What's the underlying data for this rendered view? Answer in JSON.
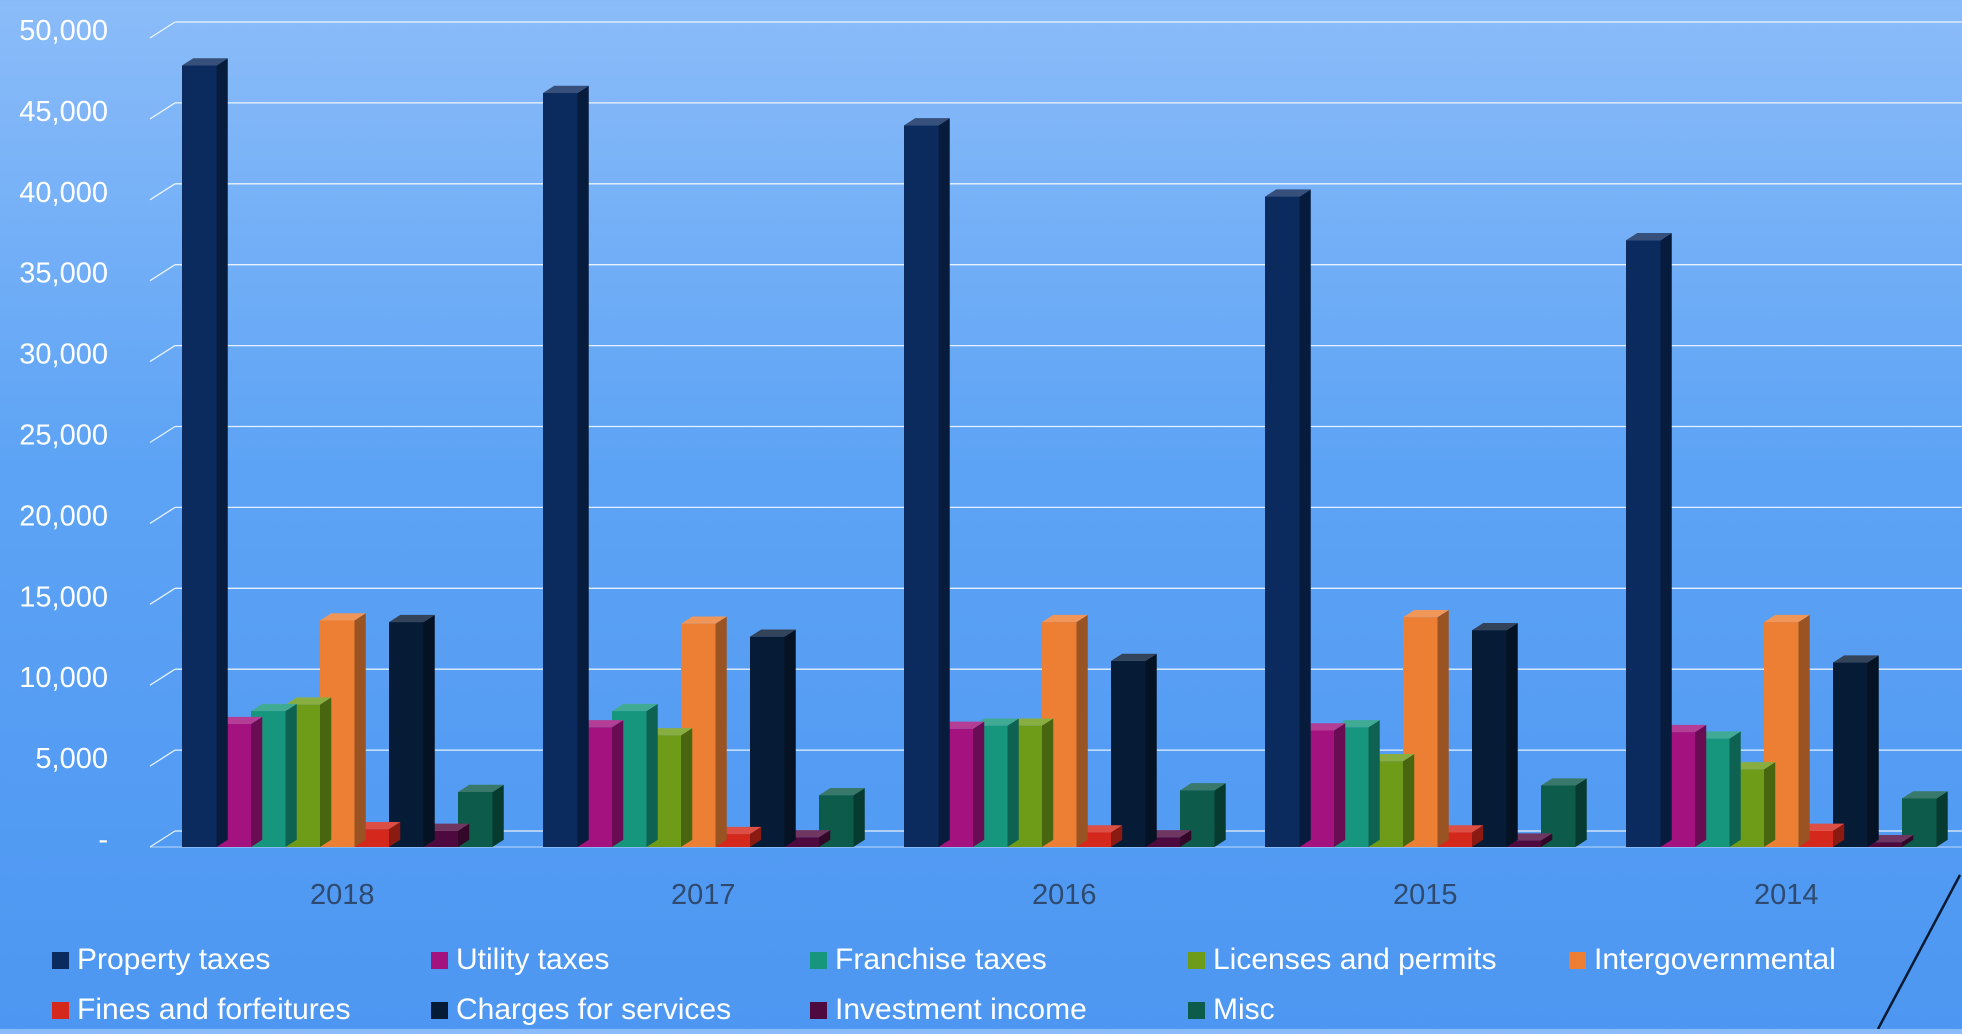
{
  "chart_data": {
    "type": "bar",
    "categories": [
      "2018",
      "2017",
      "2016",
      "2015",
      "2014"
    ],
    "ylim": [
      0,
      50000
    ],
    "yticks": [
      {
        "value": 0,
        "label": "-"
      },
      {
        "value": 5000,
        "label": "5,000"
      },
      {
        "value": 10000,
        "label": "10,000"
      },
      {
        "value": 15000,
        "label": "15,000"
      },
      {
        "value": 20000,
        "label": "20,000"
      },
      {
        "value": 25000,
        "label": "25,000"
      },
      {
        "value": 30000,
        "label": "30,000"
      },
      {
        "value": 35000,
        "label": "35,000"
      },
      {
        "value": 40000,
        "label": "40,000"
      },
      {
        "value": 45000,
        "label": "45,000"
      },
      {
        "value": 50000,
        "label": "50,000"
      }
    ],
    "grid": true,
    "legend_position": "bottom",
    "series": [
      {
        "name": "Property taxes",
        "color": "#0b2a5e",
        "values": [
          48300,
          46600,
          44600,
          40200,
          37500
        ]
      },
      {
        "name": "Utility taxes",
        "color": "#a3127f",
        "values": [
          7600,
          7400,
          7300,
          7200,
          7100
        ]
      },
      {
        "name": "Franchise taxes",
        "color": "#16977d",
        "values": [
          8400,
          8400,
          7500,
          7400,
          6700
        ]
      },
      {
        "name": "Licenses and permits",
        "color": "#6e9c18",
        "values": [
          8800,
          6900,
          7500,
          5300,
          4800
        ]
      },
      {
        "name": "Intergovernmental",
        "color": "#ed7f35",
        "values": [
          14000,
          13800,
          13900,
          14200,
          13900
        ]
      },
      {
        "name": "Fines and forfeitures",
        "color": "#d5281c",
        "values": [
          1100,
          800,
          900,
          900,
          1000
        ]
      },
      {
        "name": "Charges for services",
        "color": "#061b36",
        "values": [
          13900,
          13000,
          11500,
          13400,
          11400
        ]
      },
      {
        "name": "Investment income",
        "color": "#4e0a3e",
        "values": [
          1000,
          600,
          600,
          400,
          300
        ]
      },
      {
        "name": "Misc",
        "color": "#0d5b4a",
        "values": [
          3400,
          3200,
          3500,
          3800,
          3000
        ]
      }
    ]
  }
}
